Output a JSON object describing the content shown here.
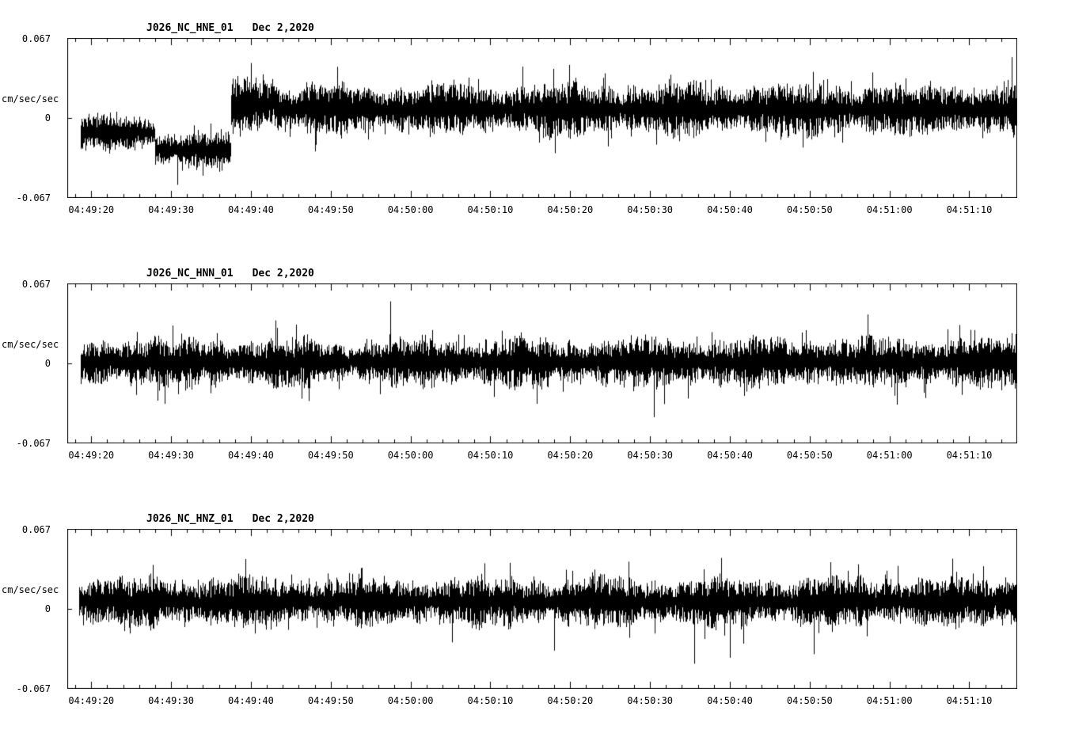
{
  "page": {
    "background": "#ffffff",
    "trace_color": "#000000"
  },
  "chart_data": [
    {
      "type": "line",
      "kind": "seismic-waveform",
      "station": "J026_NC_HNE_01",
      "date": "Dec 2,2020",
      "ylabel": "cm/sec/sec",
      "ytick_labels": [
        "0.067",
        "0",
        "-0.067"
      ],
      "ylim": [
        -0.067,
        0.067
      ],
      "time_start": "04:49:17",
      "time_end": "04:51:16",
      "duration_sec": 119,
      "x_tick_labels": [
        "04:49:20",
        "04:49:30",
        "04:49:40",
        "04:49:50",
        "04:50:00",
        "04:50:10",
        "04:50:20",
        "04:50:30",
        "04:50:40",
        "04:50:50",
        "04:51:00",
        "04:51:10"
      ],
      "major_tick_offsets_sec": [
        3,
        13,
        23,
        33,
        43,
        53,
        63,
        73,
        83,
        93,
        103,
        113
      ],
      "minor_tick_interval_sec": 2,
      "trace_window": [
        1.7,
        118.8
      ],
      "envelope": [
        {
          "t0": 0,
          "t1": 11,
          "offset": -0.012,
          "amp": 0.013
        },
        {
          "t0": 11,
          "t1": 20.5,
          "offset": -0.027,
          "amp": 0.012
        },
        {
          "t0": 20.5,
          "t1": 26,
          "offset": 0.012,
          "amp": 0.022
        },
        {
          "t0": 26,
          "t1": 60,
          "offset": 0.007,
          "amp": 0.017
        },
        {
          "t0": 60,
          "t1": 119,
          "offset": 0.007,
          "amp": 0.018
        }
      ],
      "spikes": [
        {
          "t": 13.8,
          "v": -0.056
        },
        {
          "t": 23.0,
          "v": 0.046
        },
        {
          "t": 57.0,
          "v": 0.043
        },
        {
          "t": 118.3,
          "v": 0.051
        }
      ],
      "seed": 101
    },
    {
      "type": "line",
      "kind": "seismic-waveform",
      "station": "J026_NC_HNN_01",
      "date": "Dec 2,2020",
      "ylabel": "cm/sec/sec",
      "ytick_labels": [
        "0.067",
        "0",
        "-0.067"
      ],
      "ylim": [
        -0.067,
        0.067
      ],
      "time_start": "04:49:17",
      "time_end": "04:51:16",
      "duration_sec": 119,
      "x_tick_labels": [
        "04:49:20",
        "04:49:30",
        "04:49:40",
        "04:49:50",
        "04:50:00",
        "04:50:10",
        "04:50:20",
        "04:50:30",
        "04:50:40",
        "04:50:50",
        "04:51:00",
        "04:51:10"
      ],
      "major_tick_offsets_sec": [
        3,
        13,
        23,
        33,
        43,
        53,
        63,
        73,
        83,
        93,
        103,
        113
      ],
      "minor_tick_interval_sec": 2,
      "trace_window": [
        1.7,
        118.8
      ],
      "envelope": [
        {
          "t0": 0,
          "t1": 119,
          "offset": 0.001,
          "amp": 0.017
        }
      ],
      "spikes": [
        {
          "t": 40.5,
          "v": 0.052
        },
        {
          "t": 73.5,
          "v": -0.045
        }
      ],
      "seed": 202
    },
    {
      "type": "line",
      "kind": "seismic-waveform",
      "station": "J026_NC_HNZ_01",
      "date": "Dec 2,2020",
      "ylabel": "cm/sec/sec",
      "ytick_labels": [
        "0.067",
        "0",
        "-0.067"
      ],
      "ylim": [
        -0.067,
        0.067
      ],
      "time_start": "04:49:17",
      "time_end": "04:51:16",
      "duration_sec": 119,
      "x_tick_labels": [
        "04:49:20",
        "04:49:30",
        "04:49:40",
        "04:49:50",
        "04:50:00",
        "04:50:10",
        "04:50:20",
        "04:50:30",
        "04:50:40",
        "04:50:50",
        "04:51:00",
        "04:51:10"
      ],
      "major_tick_offsets_sec": [
        3,
        13,
        23,
        33,
        43,
        53,
        63,
        73,
        83,
        93,
        103,
        113
      ],
      "minor_tick_interval_sec": 2,
      "trace_window": [
        1.5,
        118.8
      ],
      "envelope": [
        {
          "t0": 0,
          "t1": 119,
          "offset": 0.006,
          "amp": 0.017
        }
      ],
      "spikes": [
        {
          "t": 61.0,
          "v": -0.035
        },
        {
          "t": 78.5,
          "v": -0.046
        },
        {
          "t": 83.0,
          "v": -0.041
        },
        {
          "t": 93.5,
          "v": -0.038
        },
        {
          "t": 104.0,
          "v": 0.036
        }
      ],
      "seed": 303
    }
  ]
}
